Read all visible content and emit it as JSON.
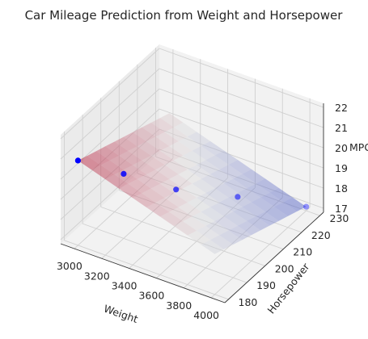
{
  "chart_data": {
    "type": "scatter",
    "subtype": "3d-scatter-with-regression-surface",
    "title": "Car Mileage Prediction from Weight and Horsepower",
    "xlabel": "Weight",
    "ylabel": "Horsepower",
    "zlabel": "MPG",
    "xlim": [
      2900,
      4100
    ],
    "ylim": [
      178,
      232
    ],
    "zlim": [
      16.8,
      22.2
    ],
    "xticks": [
      3000,
      3200,
      3400,
      3600,
      3800,
      4000
    ],
    "yticks": [
      180,
      190,
      200,
      210,
      220,
      230
    ],
    "zticks": [
      17,
      18,
      19,
      20,
      21,
      22
    ],
    "points": [
      {
        "x": 3000,
        "y": 180,
        "z": 21.0
      },
      {
        "x": 3200,
        "y": 190,
        "z": 20.0
      },
      {
        "x": 3450,
        "y": 200,
        "z": 19.0
      },
      {
        "x": 3700,
        "y": 215,
        "z": 18.0
      },
      {
        "x": 4000,
        "y": 230,
        "z": 17.0
      }
    ],
    "surface": {
      "model": "linear",
      "x_range": [
        3000,
        4000
      ],
      "y_range": [
        180,
        230
      ],
      "z_range": [
        17.0,
        21.0
      ],
      "colormap": "coolwarm"
    },
    "point_color": "#0000ff",
    "grid": true
  }
}
